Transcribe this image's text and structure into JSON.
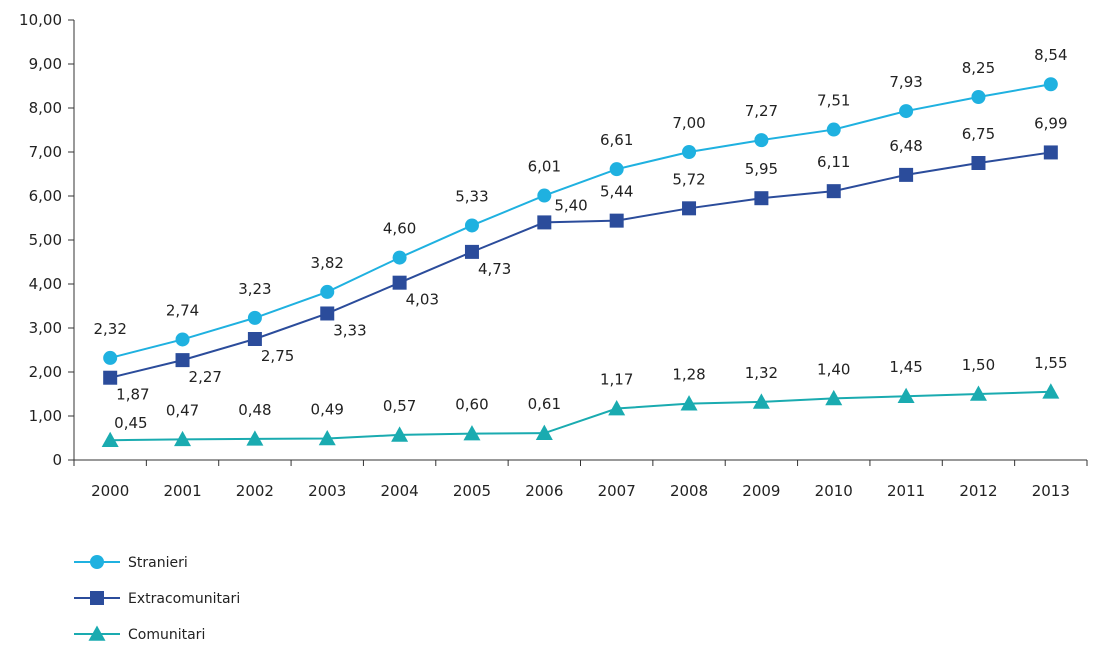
{
  "chart_data": {
    "type": "line",
    "categories": [
      "2000",
      "2001",
      "2002",
      "2003",
      "2004",
      "2005",
      "2006",
      "2007",
      "2008",
      "2009",
      "2010",
      "2011",
      "2012",
      "2013"
    ],
    "ylim": [
      0,
      10
    ],
    "y_ticks": [
      "0",
      "1,00",
      "2,00",
      "3,00",
      "4,00",
      "5,00",
      "6,00",
      "7,00",
      "8,00",
      "9,00",
      "10,00"
    ],
    "grid": false,
    "legend_position": "bottom-left",
    "series": [
      {
        "name": "Stranieri",
        "color": "#1fb1e0",
        "marker": "circle",
        "values": [
          2.32,
          2.74,
          3.23,
          3.82,
          4.6,
          5.33,
          6.01,
          6.61,
          7.0,
          7.27,
          7.51,
          7.93,
          8.25,
          8.54
        ],
        "labels": [
          "2,32",
          "2,74",
          "3,23",
          "3,82",
          "4,60",
          "5,33",
          "6,01",
          "6,61",
          "7,00",
          "7,27",
          "7,51",
          "7,93",
          "8,25",
          "8,54"
        ]
      },
      {
        "name": "Extracomunitari",
        "color": "#2b4c9b",
        "marker": "square",
        "values": [
          1.87,
          2.27,
          2.75,
          3.33,
          4.03,
          4.73,
          5.4,
          5.44,
          5.72,
          5.95,
          6.11,
          6.48,
          6.75,
          6.99
        ],
        "labels": [
          "1,87",
          "2,27",
          "2,75",
          "3,33",
          "4,03",
          "4,73",
          "5,40",
          "5,44",
          "5,72",
          "5,95",
          "6,11",
          "6,48",
          "6,75",
          "6,99"
        ]
      },
      {
        "name": "Comunitari",
        "color": "#1aabb0",
        "marker": "triangle",
        "values": [
          0.45,
          0.47,
          0.48,
          0.49,
          0.57,
          0.6,
          0.61,
          1.17,
          1.28,
          1.32,
          1.4,
          1.45,
          1.5,
          1.55
        ],
        "labels": [
          "0,45",
          "0,47",
          "0,48",
          "0,49",
          "0,57",
          "0,60",
          "0,61",
          "1,17",
          "1,28",
          "1,32",
          "1,40",
          "1,45",
          "1,50",
          "1,55"
        ]
      }
    ]
  }
}
